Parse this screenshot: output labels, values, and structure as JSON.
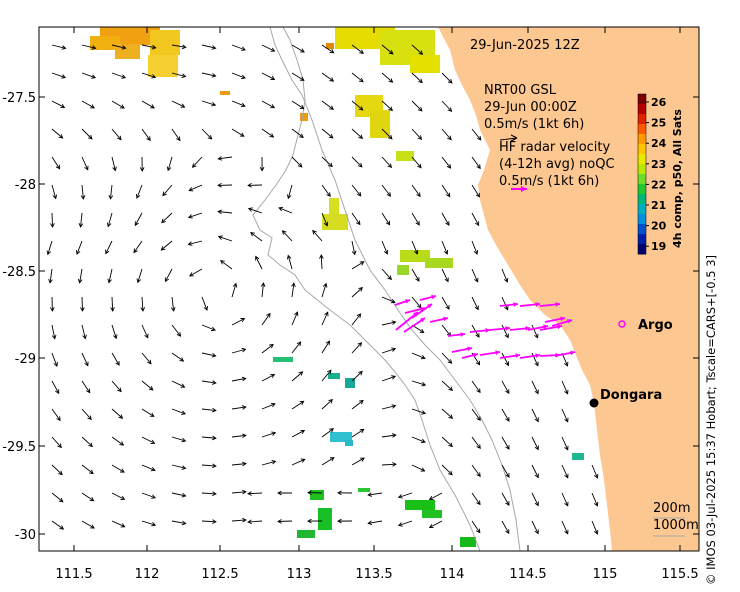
{
  "title": "29-Jun-2025 12Z",
  "model_label": {
    "line1": "NRT00 GSL",
    "line2": "29-Jun 00:00Z",
    "line3": "0.5m/s (1kt 6h)"
  },
  "radar_label": {
    "line1": "HF radar velocity",
    "line2": "(4-12h avg) noQC",
    "line3": "0.5m/s (1kt 6h)"
  },
  "colorbar": {
    "title": "4h comp, p50, All Sats",
    "ticks": [
      "26",
      "25",
      "24",
      "23",
      "22",
      "21",
      "20",
      "19"
    ]
  },
  "places": {
    "argo": "Argo",
    "dongara": "Dongara"
  },
  "depth_labels": {
    "shelf": "200m",
    "slope": "1000m"
  },
  "credit": "© IMOS 03-Jul-2025 15:37 Hobart; Tscale=CARS+[-0.5 3]",
  "axes": {
    "x_ticks": [
      "111.5",
      "112",
      "112.5",
      "113",
      "113.5",
      "114",
      "114.5",
      "115",
      "115.5"
    ],
    "y_ticks": [
      "-27.5",
      "-28",
      "-28.5",
      "-29",
      "-29.5",
      "-30"
    ]
  },
  "colors": {
    "land": "#fdc791",
    "vector": "#000000",
    "radar": "#ff00ff",
    "isobath": "#a8a8a8"
  }
}
